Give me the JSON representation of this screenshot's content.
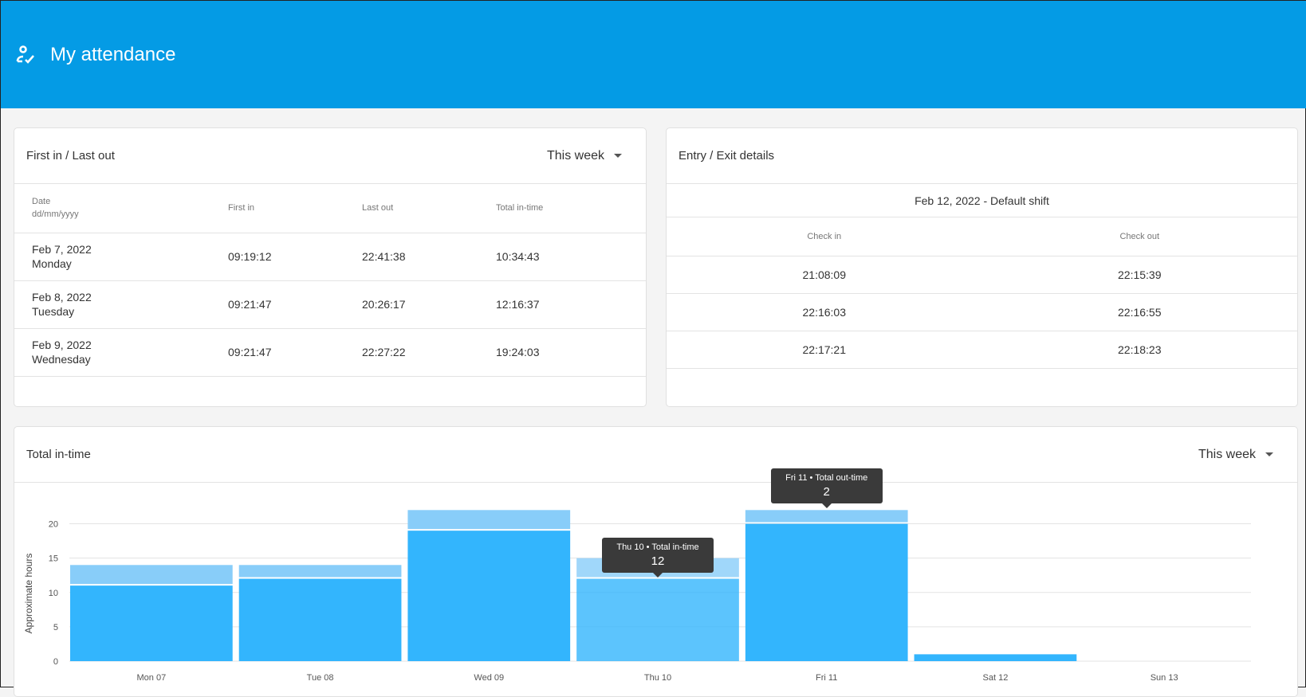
{
  "header": {
    "title": "My attendance",
    "icon": "user-check-icon"
  },
  "first_last": {
    "title": "First in / Last out",
    "period": "This week",
    "columns": {
      "date": "Date",
      "date_format": "dd/mm/yyyy",
      "first_in": "First in",
      "last_out": "Last out",
      "total": "Total in-time"
    },
    "rows": [
      {
        "date": "Feb 7, 2022",
        "day": "Monday",
        "first_in": "09:19:12",
        "last_out": "22:41:38",
        "total": "10:34:43"
      },
      {
        "date": "Feb 8, 2022",
        "day": "Tuesday",
        "first_in": "09:21:47",
        "last_out": "20:26:17",
        "total": "12:16:37"
      },
      {
        "date": "Feb 9, 2022",
        "day": "Wednesday",
        "first_in": "09:21:47",
        "last_out": "22:27:22",
        "total": "19:24:03"
      }
    ]
  },
  "entry_exit": {
    "title": "Entry / Exit details",
    "shift": "Feb 12, 2022 - Default shift",
    "columns": {
      "check_in": "Check in",
      "check_out": "Check out"
    },
    "rows": [
      {
        "check_in": "21:08:09",
        "check_out": "22:15:39"
      },
      {
        "check_in": "22:16:03",
        "check_out": "22:16:55"
      },
      {
        "check_in": "22:17:21",
        "check_out": "22:18:23"
      }
    ]
  },
  "total_card": {
    "title": "Total in-time",
    "period": "This week"
  },
  "chart_data": {
    "type": "bar",
    "stacked": true,
    "categories": [
      "Mon 07",
      "Tue 08",
      "Wed 09",
      "Thu 10",
      "Fri 11",
      "Sat 12",
      "Sun 13"
    ],
    "series": [
      {
        "name": "Total in-time",
        "values": [
          11,
          12,
          19,
          12,
          20,
          1,
          0
        ],
        "color": "#33b5fd"
      },
      {
        "name": "Total out-time",
        "values": [
          3,
          2,
          3,
          3,
          2,
          0,
          0
        ],
        "color": "#88cdf9"
      }
    ],
    "ylabel": "Approximate hours",
    "yticks": [
      0,
      5,
      10,
      15,
      20
    ],
    "ylim": [
      0,
      22.5
    ],
    "grid": true,
    "tooltips": [
      {
        "label": "Thu 10 • Total in-time",
        "value": "12",
        "category": 3,
        "series": 0
      },
      {
        "label": "Fri 11 • Total out-time",
        "value": "2",
        "category": 4,
        "series": 1
      }
    ]
  }
}
